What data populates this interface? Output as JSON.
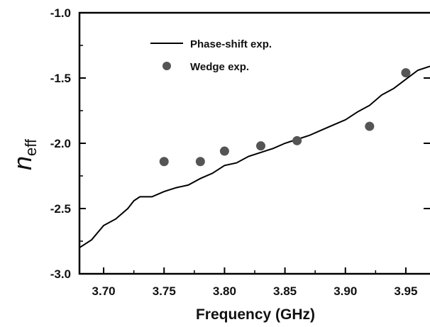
{
  "chart_data": {
    "type": "line",
    "title": "",
    "xlabel": "Frequency (GHz)",
    "ylabel": {
      "main": "n",
      "sub": "eff"
    },
    "xlim": [
      3.68,
      3.97
    ],
    "ylim": [
      -3.0,
      -1.0
    ],
    "x_ticks": [
      3.7,
      3.75,
      3.8,
      3.85,
      3.9,
      3.95
    ],
    "x_tick_labels": [
      "3.70",
      "3.75",
      "3.80",
      "3.85",
      "3.90",
      "3.95"
    ],
    "y_ticks": [
      -1.0,
      -1.5,
      -2.0,
      -2.5,
      -3.0
    ],
    "y_tick_labels": [
      "-1.0",
      "-1.5",
      "-2.0",
      "-2.5",
      "-3.0"
    ],
    "grid": false,
    "legend_position": "top-left",
    "series": [
      {
        "name": "Phase-shift exp.",
        "kind": "line",
        "color": "#000000",
        "x": [
          3.68,
          3.69,
          3.7,
          3.71,
          3.72,
          3.725,
          3.73,
          3.74,
          3.75,
          3.76,
          3.77,
          3.78,
          3.79,
          3.8,
          3.81,
          3.82,
          3.83,
          3.84,
          3.85,
          3.86,
          3.87,
          3.88,
          3.89,
          3.9,
          3.91,
          3.92,
          3.93,
          3.94,
          3.95,
          3.96,
          3.97
        ],
        "y": [
          -2.8,
          -2.74,
          -2.63,
          -2.58,
          -2.5,
          -2.44,
          -2.41,
          -2.41,
          -2.37,
          -2.34,
          -2.32,
          -2.27,
          -2.23,
          -2.17,
          -2.15,
          -2.1,
          -2.07,
          -2.04,
          -2.0,
          -1.97,
          -1.94,
          -1.9,
          -1.86,
          -1.82,
          -1.76,
          -1.71,
          -1.63,
          -1.58,
          -1.51,
          -1.44,
          -1.41
        ]
      },
      {
        "name": "Wedge exp.",
        "kind": "scatter",
        "color": "#555555",
        "x": [
          3.75,
          3.78,
          3.8,
          3.83,
          3.86,
          3.92,
          3.95
        ],
        "y": [
          -2.14,
          -2.14,
          -2.06,
          -2.02,
          -1.98,
          -1.87,
          -1.46
        ]
      }
    ]
  }
}
